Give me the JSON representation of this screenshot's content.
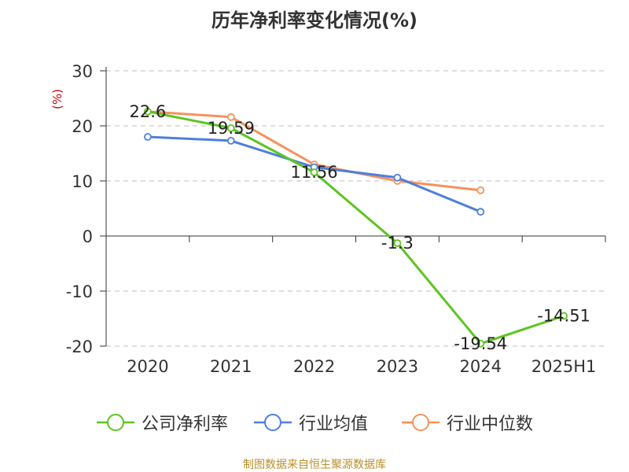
{
  "title": "历年净利率变化情况(%)",
  "source": "制图数据来自恒生聚源数据库",
  "colors": {
    "company": "#5dc522",
    "industry_avg": "#4f7fdb",
    "industry_median": "#f5925c",
    "unit": "#cc0000"
  },
  "chart_data": {
    "type": "line",
    "title": "历年净利率变化情况(%)",
    "ylabel": "(%)",
    "categories": [
      "2020",
      "2021",
      "2022",
      "2023",
      "2024",
      "2025H1"
    ],
    "ylim": [
      -20,
      30
    ],
    "yticks": [
      30,
      20,
      10,
      0,
      -10,
      -20
    ],
    "grid": true,
    "legend_position": "bottom",
    "series": [
      {
        "name": "公司净利率",
        "color": "#5dc522",
        "values": [
          22.6,
          19.59,
          11.56,
          -1.3,
          -19.54,
          -14.51
        ],
        "labels": [
          "22.6",
          "19.59",
          "11.56",
          "-1.3",
          "-19.54",
          "-14.51"
        ]
      },
      {
        "name": "行业均值",
        "color": "#4f7fdb",
        "values": [
          18.0,
          17.3,
          12.5,
          10.6,
          4.4,
          null
        ]
      },
      {
        "name": "行业中位数",
        "color": "#f5925c",
        "values": [
          22.6,
          21.6,
          13.0,
          10.0,
          8.3,
          null
        ]
      }
    ]
  }
}
